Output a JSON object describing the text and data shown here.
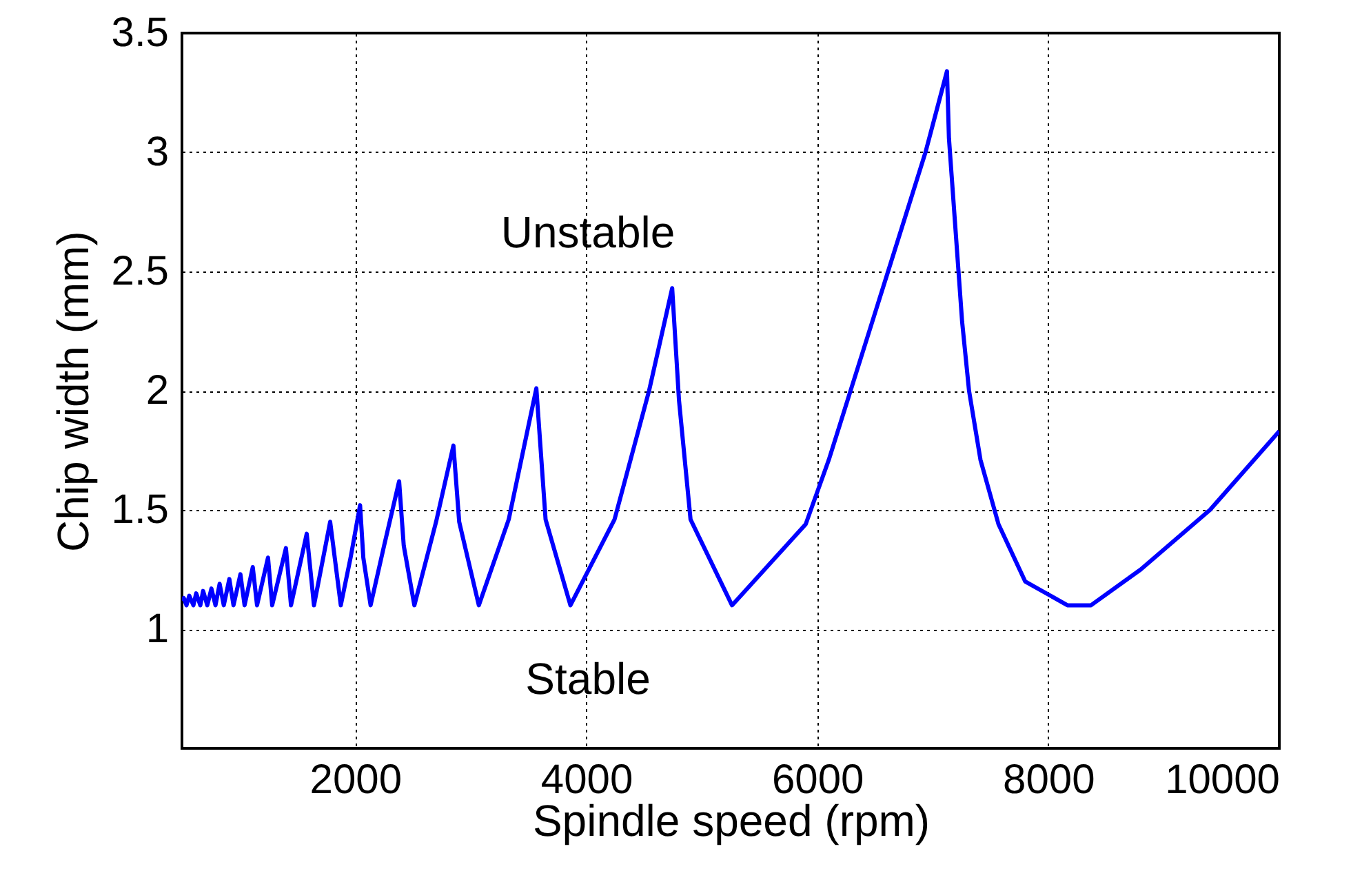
{
  "chart_data": {
    "type": "line",
    "xlabel": "Spindle speed (rpm)",
    "ylabel": "Chip width (mm)",
    "x": [
      500,
      516,
      539,
      563,
      599,
      623,
      659,
      683,
      719,
      755,
      790,
      826,
      862,
      910,
      946,
      1006,
      1042,
      1113,
      1150,
      1245,
      1281,
      1400,
      1444,
      1580,
      1643,
      1783,
      1875,
      1960,
      2042,
      2070,
      2133,
      2250,
      2380,
      2420,
      2512,
      2700,
      2850,
      2900,
      3070,
      3329,
      3568,
      3648,
      3863,
      4245,
      4544,
      4744,
      4803,
      4903,
      5262,
      5900,
      6100,
      6613,
      6937,
      7123,
      7140,
      7254,
      7314,
      7413,
      7569,
      7800,
      8166,
      8370,
      8800,
      9400,
      10000
    ],
    "series": [
      {
        "color": "#0000ff",
        "values": [
          1.12,
          1.13,
          1.1,
          1.14,
          1.1,
          1.15,
          1.1,
          1.16,
          1.1,
          1.17,
          1.1,
          1.19,
          1.1,
          1.21,
          1.1,
          1.23,
          1.1,
          1.26,
          1.1,
          1.3,
          1.1,
          1.34,
          1.1,
          1.4,
          1.1,
          1.45,
          1.1,
          1.3,
          1.52,
          1.3,
          1.1,
          1.35,
          1.62,
          1.35,
          1.1,
          1.45,
          1.77,
          1.45,
          1.1,
          1.46,
          2.01,
          1.46,
          1.1,
          1.46,
          2.0,
          2.43,
          1.96,
          1.46,
          1.1,
          1.44,
          1.71,
          2.5,
          3.0,
          3.34,
          3.06,
          2.29,
          2.0,
          1.71,
          1.44,
          1.2,
          1.1,
          1.1,
          1.25,
          1.5,
          1.83
        ]
      }
    ],
    "xlim": [
      500,
      10000
    ],
    "xticks": [
      2000,
      4000,
      6000,
      8000,
      10000
    ],
    "ylim": [
      0.5,
      3.5
    ],
    "yticks": [
      1,
      1.5,
      2,
      2.5,
      3,
      3.5
    ],
    "grid": true,
    "annotations": [
      "Unstable",
      "Stable"
    ]
  }
}
